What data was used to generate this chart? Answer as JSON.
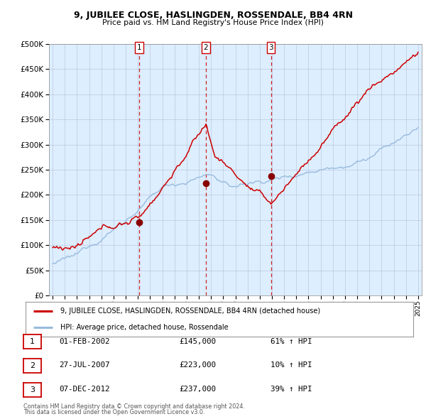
{
  "title": "9, JUBILEE CLOSE, HASLINGDEN, ROSSENDALE, BB4 4RN",
  "subtitle": "Price paid vs. HM Land Registry's House Price Index (HPI)",
  "legend_line1": "9, JUBILEE CLOSE, HASLINGDEN, ROSSENDALE, BB4 4RN (detached house)",
  "legend_line2": "HPI: Average price, detached house, Rossendale",
  "footer1": "Contains HM Land Registry data © Crown copyright and database right 2024.",
  "footer2": "This data is licensed under the Open Government Licence v3.0.",
  "transactions": [
    {
      "num": 1,
      "date": "01-FEB-2002",
      "price": 145000,
      "pct": "61%",
      "dir": "↑"
    },
    {
      "num": 2,
      "date": "27-JUL-2007",
      "price": 223000,
      "pct": "10%",
      "dir": "↑"
    },
    {
      "num": 3,
      "date": "07-DEC-2012",
      "price": 237000,
      "pct": "39%",
      "dir": "↑"
    }
  ],
  "transaction_dates_decimal": [
    2002.083,
    2007.571,
    2012.917
  ],
  "transaction_prices": [
    145000,
    223000,
    237000
  ],
  "red_line_color": "#cc0000",
  "blue_line_color": "#99bbdd",
  "marker_color": "#880000",
  "vline_color": "#cc0000",
  "grid_color": "#b0b8d0",
  "plot_bg_color": "#ddeeff",
  "ylim": [
    0,
    500000
  ],
  "yticks": [
    0,
    50000,
    100000,
    150000,
    200000,
    250000,
    300000,
    350000,
    400000,
    450000,
    500000
  ],
  "xlim_start": 1994.7,
  "xlim_end": 2025.3
}
